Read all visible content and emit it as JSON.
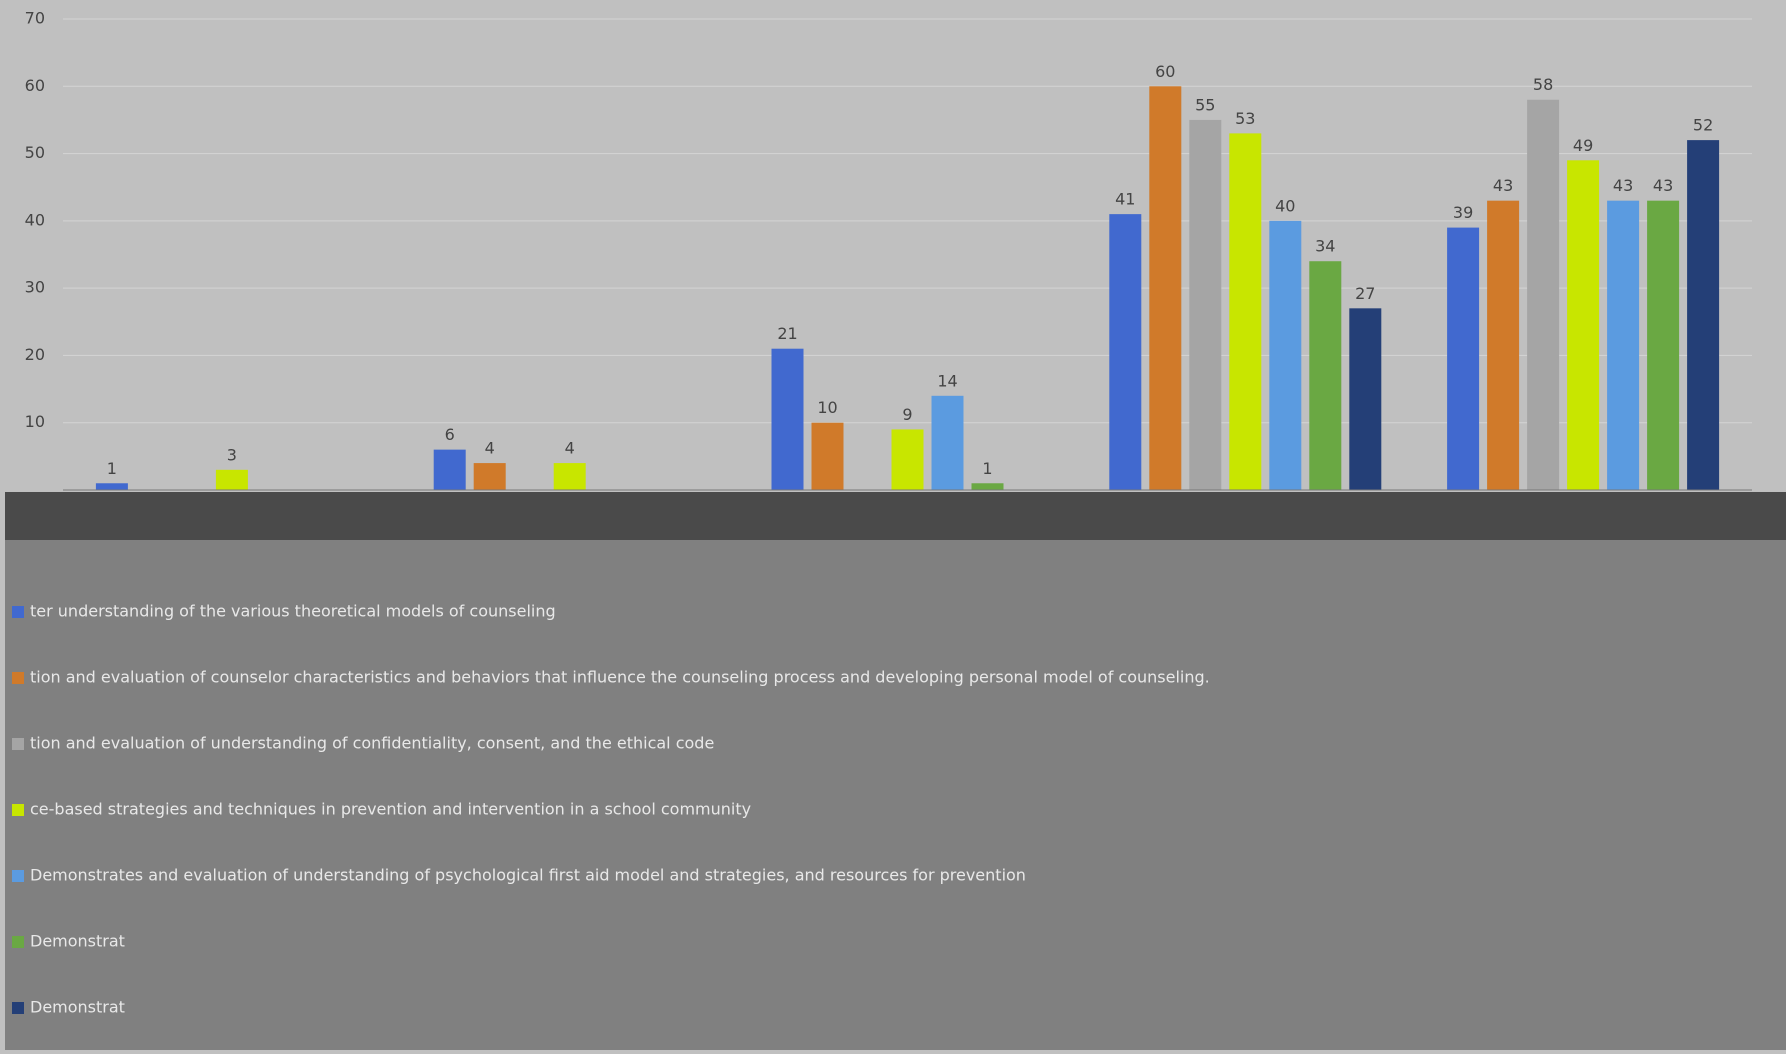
{
  "chart_data": {
    "type": "bar",
    "categories": [
      null,
      null,
      null,
      null,
      null
    ],
    "series": [
      {
        "name": "ter understanding of the various theoretical models of counseling",
        "color": "#4169cf",
        "values": [
          1,
          6,
          21,
          41,
          39
        ]
      },
      {
        "name": "tion and evaluation of counselor characteristics and behaviors that influence the counseling process and developing personal model of counseling.",
        "color": "#d07a2a",
        "values": [
          null,
          4,
          10,
          60,
          43
        ]
      },
      {
        "name": "tion and evaluation of understanding of confidentiality, consent, and the ethical code",
        "color": "#a5a5a5",
        "values": [
          null,
          null,
          null,
          55,
          58
        ]
      },
      {
        "name": "ce-based strategies and techniques in prevention and intervention in a school community",
        "color": "#c8e600",
        "values": [
          3,
          4,
          9,
          53,
          49
        ]
      },
      {
        "name": "Demonstrates and evaluation of understanding of psychological first aid model and strategies, and resources for prevention",
        "color": "#5b9be0",
        "values": [
          null,
          null,
          14,
          40,
          43
        ]
      },
      {
        "name": "Demonstrat",
        "color": "#6aa843",
        "values": [
          null,
          null,
          1,
          34,
          43
        ]
      },
      {
        "name": "Demonstrat",
        "color": "#243f77",
        "values": [
          null,
          null,
          null,
          27,
          52
        ]
      }
    ],
    "ylim": [
      0,
      70
    ],
    "yticks": [
      10,
      20,
      30,
      40,
      50,
      60,
      70
    ],
    "grid": true
  }
}
